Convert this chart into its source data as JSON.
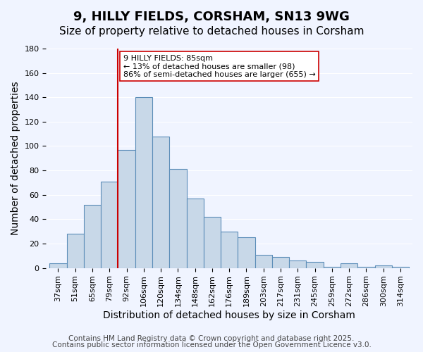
{
  "title": "9, HILLY FIELDS, CORSHAM, SN13 9WG",
  "subtitle": "Size of property relative to detached houses in Corsham",
  "xlabel": "Distribution of detached houses by size in Corsham",
  "ylabel": "Number of detached properties",
  "bar_color": "#c8d8e8",
  "bar_edge_color": "#5b8db8",
  "categories": [
    "37sqm",
    "51sqm",
    "65sqm",
    "79sqm",
    "92sqm",
    "106sqm",
    "120sqm",
    "134sqm",
    "148sqm",
    "162sqm",
    "176sqm",
    "189sqm",
    "203sqm",
    "217sqm",
    "231sqm",
    "245sqm",
    "259sqm",
    "272sqm",
    "286sqm",
    "300sqm",
    "314sqm"
  ],
  "values": [
    4,
    28,
    52,
    71,
    97,
    140,
    108,
    81,
    57,
    42,
    30,
    25,
    11,
    9,
    6,
    5,
    1,
    4,
    1,
    2,
    1
  ],
  "ylim": [
    0,
    180
  ],
  "yticks": [
    0,
    20,
    40,
    60,
    80,
    100,
    120,
    140,
    160,
    180
  ],
  "property_line_x": 3.5,
  "property_label": "9 HILLY FIELDS: 85sqm",
  "annotation_line1": "← 13% of detached houses are smaller (98)",
  "annotation_line2": "86% of semi-detached houses are larger (655) →",
  "annotation_box_color": "#ffffff",
  "annotation_box_edge": "#cc0000",
  "vline_color": "#cc0000",
  "footer1": "Contains HM Land Registry data © Crown copyright and database right 2025.",
  "footer2": "Contains public sector information licensed under the Open Government Licence v3.0.",
  "background_color": "#f0f4ff",
  "grid_color": "#ffffff",
  "title_fontsize": 13,
  "subtitle_fontsize": 11,
  "axis_label_fontsize": 10,
  "tick_fontsize": 8,
  "footer_fontsize": 7.5
}
